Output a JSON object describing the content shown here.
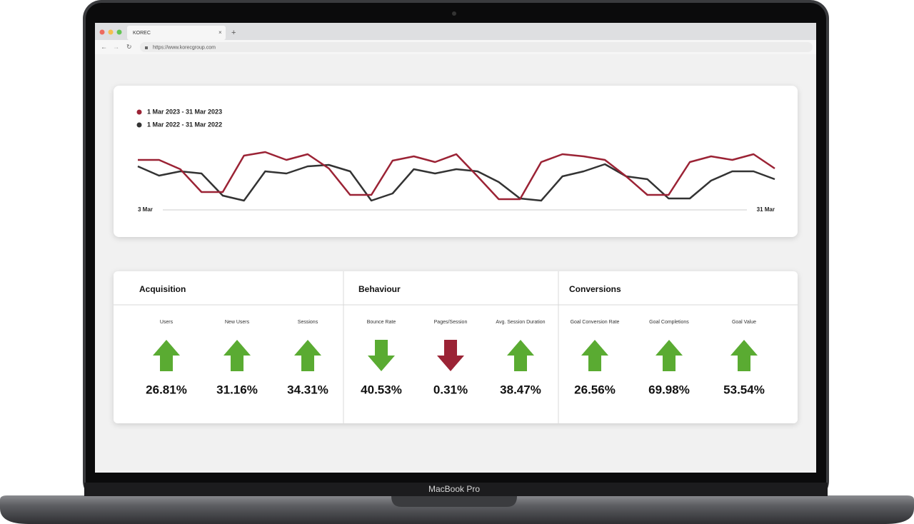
{
  "browser": {
    "tab": "KOREC",
    "url": "https://www.korecgroup.com"
  },
  "chart_data": {
    "type": "line",
    "x": [
      "3 Mar",
      null,
      null,
      null,
      null,
      null,
      null,
      null,
      null,
      null,
      null,
      null,
      null,
      null,
      null,
      null,
      null,
      null,
      null,
      null,
      null,
      null,
      null,
      null,
      null,
      null,
      null,
      null,
      null,
      null,
      "31 Mar"
    ],
    "series": [
      {
        "name": "1 Mar 2023 - 31 Mar 2023",
        "color": "#9b2335",
        "values": [
          76,
          76,
          63,
          31,
          31,
          82,
          87,
          76,
          84,
          64,
          27,
          27,
          75,
          81,
          73,
          84,
          53,
          21,
          21,
          73,
          84,
          81,
          76,
          53,
          27,
          27,
          73,
          81,
          76,
          84,
          64
        ]
      },
      {
        "name": "1 Mar 2022 - 31 Mar 2022",
        "color": "#333333",
        "values": [
          67,
          54,
          60,
          57,
          26,
          19,
          60,
          57,
          67,
          69,
          60,
          19,
          29,
          63,
          57,
          63,
          60,
          45,
          22,
          19,
          53,
          60,
          70,
          53,
          49,
          22,
          22,
          47,
          60,
          60,
          49
        ]
      }
    ],
    "ylim": [
      0,
      100
    ]
  },
  "sections": [
    {
      "title": "Acquisition",
      "metrics": [
        {
          "label": "Users",
          "value": "26.81%",
          "trend": "up",
          "color": "#5aab32"
        },
        {
          "label": "New Users",
          "value": "31.16%",
          "trend": "up",
          "color": "#5aab32"
        },
        {
          "label": "Sessions",
          "value": "34.31%",
          "trend": "up",
          "color": "#5aab32"
        }
      ]
    },
    {
      "title": "Behaviour",
      "metrics": [
        {
          "label": "Bounce Rate",
          "value": "40.53%",
          "trend": "down",
          "color": "#5aab32"
        },
        {
          "label": "Pages/Session",
          "value": "0.31%",
          "trend": "down",
          "color": "#9b2335"
        },
        {
          "label": "Avg. Session Duration",
          "value": "38.47%",
          "trend": "up",
          "color": "#5aab32"
        }
      ]
    },
    {
      "title": "Conversions",
      "metrics": [
        {
          "label": "Goal Conversion Rate",
          "value": "26.56%",
          "trend": "up",
          "color": "#5aab32"
        },
        {
          "label": "Goal Completions",
          "value": "69.98%",
          "trend": "up",
          "color": "#5aab32"
        },
        {
          "label": "Goal Value",
          "value": "53.54%",
          "trend": "up",
          "color": "#5aab32"
        }
      ]
    }
  ],
  "device": "MacBook Pro"
}
